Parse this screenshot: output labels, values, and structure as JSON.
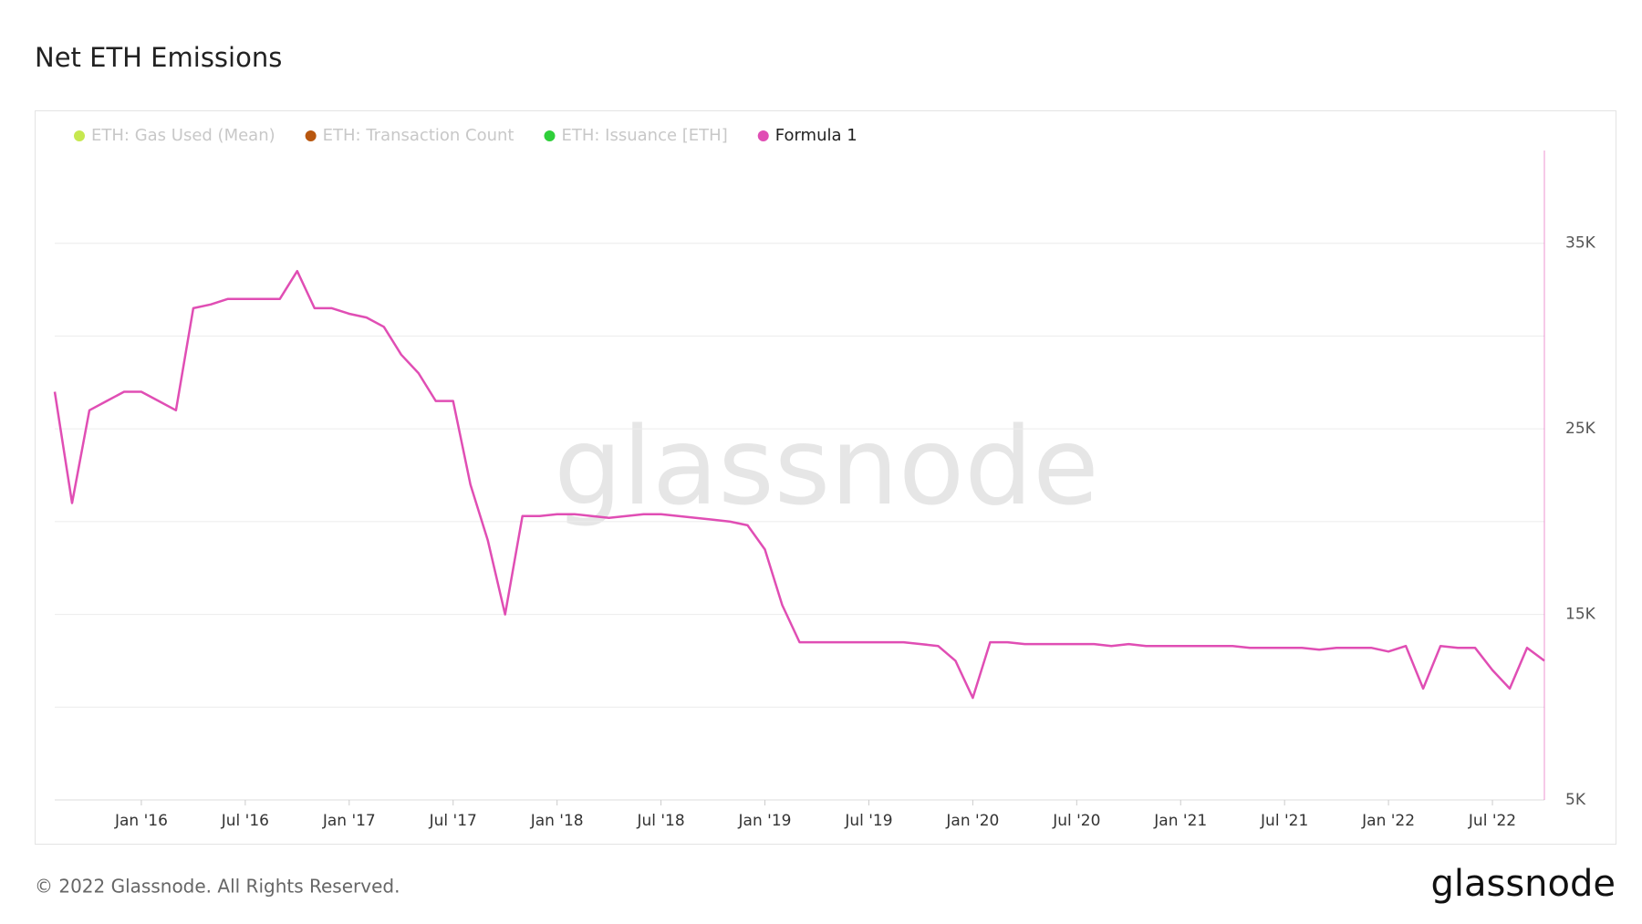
{
  "chart_data": {
    "type": "line",
    "title": "Net ETH Emissions",
    "series": [
      {
        "name": "ETH: Gas Used (Mean)",
        "color": "#c6e84f",
        "hidden": true
      },
      {
        "name": "ETH: Transaction Count",
        "color": "#b8570f",
        "hidden": true
      },
      {
        "name": "ETH: Issuance [ETH]",
        "color": "#2fcf3a",
        "hidden": true
      },
      {
        "name": "Formula 1",
        "color": "#e04eb4",
        "axis": "y2",
        "values": [
          27000,
          21000,
          26000,
          26500,
          27000,
          27000,
          26500,
          26000,
          31500,
          31700,
          32000,
          32000,
          32000,
          32000,
          33500,
          31500,
          31500,
          31200,
          31000,
          30500,
          29000,
          28000,
          26500,
          26500,
          22000,
          19000,
          15000,
          20300,
          20300,
          20400,
          20400,
          20300,
          20200,
          20300,
          20400,
          20400,
          20300,
          20200,
          20100,
          20000,
          19800,
          18500,
          15500,
          13500,
          13500,
          13500,
          13500,
          13500,
          13500,
          13500,
          13400,
          13300,
          12500,
          10500,
          13500,
          13500,
          13400,
          13400,
          13400,
          13400,
          13400,
          13300,
          13400,
          13300,
          13300,
          13300,
          13300,
          13300,
          13300,
          13200,
          13200,
          13200,
          13200,
          13100,
          13200,
          13200,
          13200,
          13000,
          13300,
          11000,
          13300,
          13200,
          13200,
          12000,
          11000,
          13200,
          12500
        ]
      }
    ],
    "x": [
      "2015-08",
      "2015-09",
      "2015-10",
      "2015-11",
      "2015-12",
      "2016-01",
      "2016-02",
      "2016-03",
      "2016-04",
      "2016-05",
      "2016-06",
      "2016-07",
      "2016-08",
      "2016-09",
      "2016-10",
      "2016-11",
      "2016-12",
      "2017-01",
      "2017-02",
      "2017-03",
      "2017-04",
      "2017-05",
      "2017-06",
      "2017-07",
      "2017-08",
      "2017-09",
      "2017-10",
      "2017-11",
      "2017-12",
      "2018-01",
      "2018-02",
      "2018-03",
      "2018-04",
      "2018-05",
      "2018-06",
      "2018-07",
      "2018-08",
      "2018-09",
      "2018-10",
      "2018-11",
      "2018-12",
      "2019-01",
      "2019-02",
      "2019-03",
      "2019-04",
      "2019-05",
      "2019-06",
      "2019-07",
      "2019-08",
      "2019-09",
      "2019-10",
      "2019-11",
      "2019-12",
      "2020-01",
      "2020-02",
      "2020-03",
      "2020-04",
      "2020-05",
      "2020-06",
      "2020-07",
      "2020-08",
      "2020-09",
      "2020-10",
      "2020-11",
      "2020-12",
      "2021-01",
      "2021-02",
      "2021-03",
      "2021-04",
      "2021-05",
      "2021-06",
      "2021-07",
      "2021-08",
      "2021-09",
      "2021-10",
      "2021-11",
      "2021-12",
      "2022-01",
      "2022-02",
      "2022-03",
      "2022-04",
      "2022-05",
      "2022-06",
      "2022-07",
      "2022-08",
      "2022-09",
      "2022-10"
    ],
    "xlim": [
      "2015-08",
      "2022-10"
    ],
    "xticks": [
      {
        "value": "2016-01",
        "label": "Jan '16"
      },
      {
        "value": "2016-07",
        "label": "Jul '16"
      },
      {
        "value": "2017-01",
        "label": "Jan '17"
      },
      {
        "value": "2017-07",
        "label": "Jul '17"
      },
      {
        "value": "2018-01",
        "label": "Jan '18"
      },
      {
        "value": "2018-07",
        "label": "Jul '18"
      },
      {
        "value": "2019-01",
        "label": "Jan '19"
      },
      {
        "value": "2019-07",
        "label": "Jul '19"
      },
      {
        "value": "2020-01",
        "label": "Jan '20"
      },
      {
        "value": "2020-07",
        "label": "Jul '20"
      },
      {
        "value": "2021-01",
        "label": "Jan '21"
      },
      {
        "value": "2021-07",
        "label": "Jul '21"
      },
      {
        "value": "2022-01",
        "label": "Jan '22"
      },
      {
        "value": "2022-07",
        "label": "Jul '22"
      }
    ],
    "y2lim": [
      5000,
      40000
    ],
    "y2ticks": [
      {
        "value": 5000,
        "label": "5K"
      },
      {
        "value": 10000,
        "label": null
      },
      {
        "value": 15000,
        "label": "15K"
      },
      {
        "value": 20000,
        "label": null
      },
      {
        "value": 25000,
        "label": "25K"
      },
      {
        "value": 30000,
        "label": null
      },
      {
        "value": 35000,
        "label": "35K"
      }
    ],
    "grid": true,
    "legend": "top-left"
  },
  "watermark": "glassnode",
  "footer": "© 2022 Glassnode. All Rights Reserved.",
  "logo": "glassnode"
}
